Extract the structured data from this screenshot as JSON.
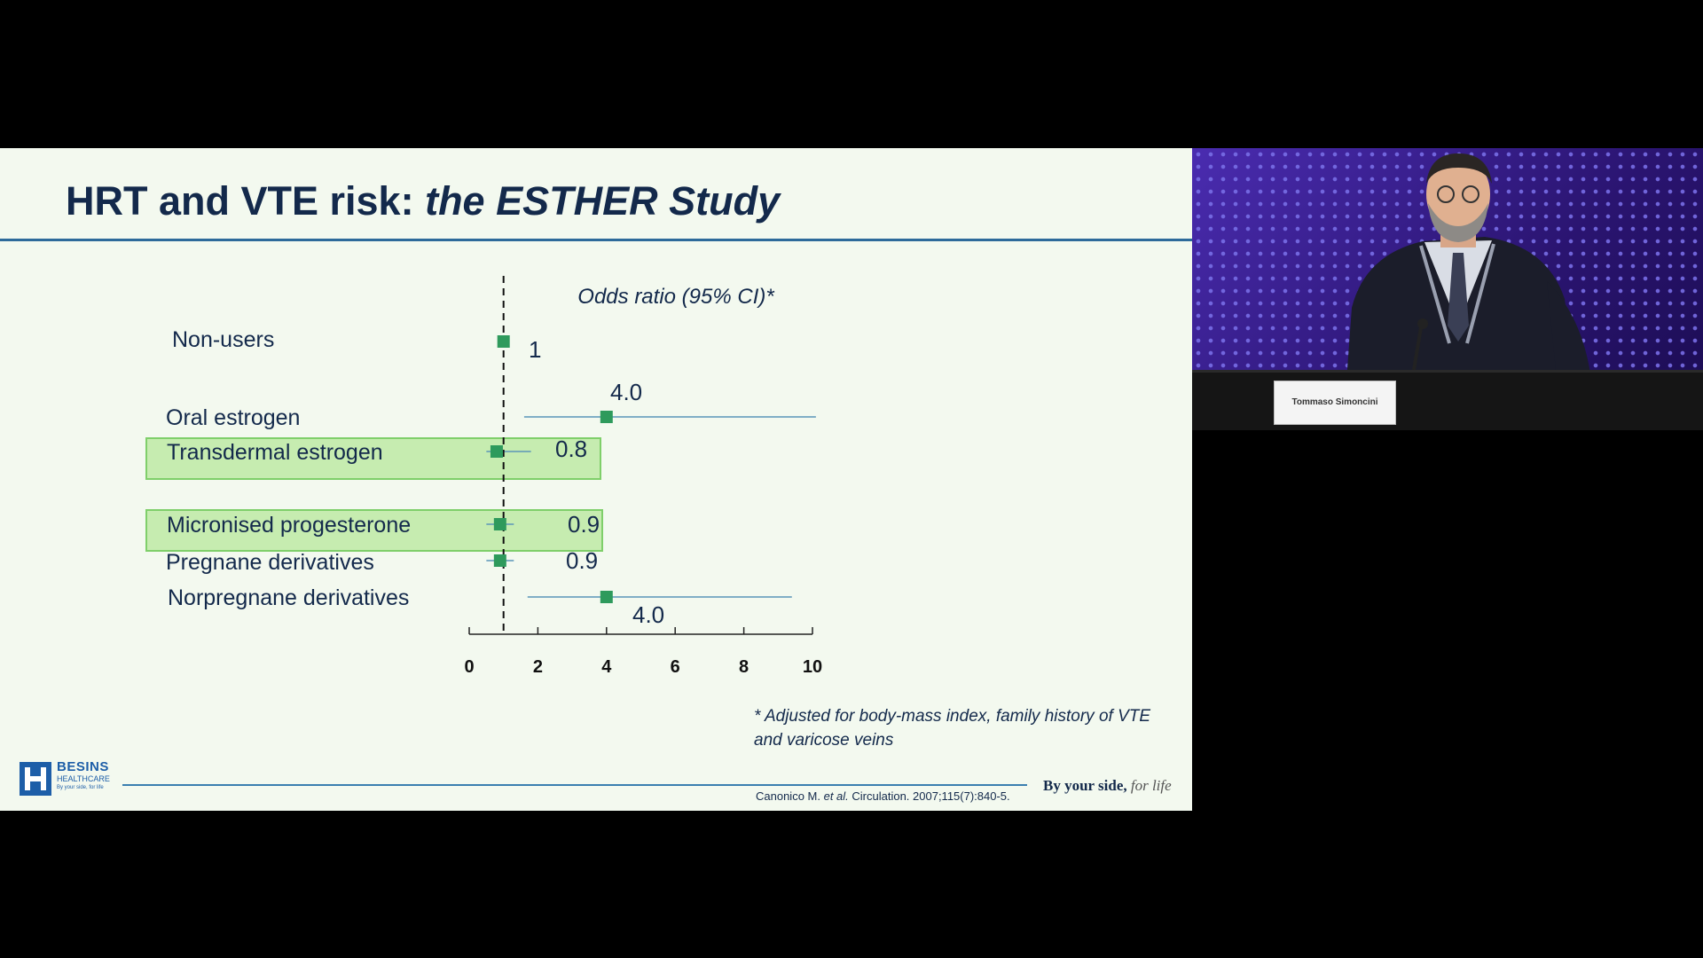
{
  "slide": {
    "title_main": "HRT and VTE risk: ",
    "title_italic": "the ESTHER Study",
    "footnote": "* Adjusted for body-mass index, family history of VTE and varicose veins",
    "citation_author": "Canonico M. ",
    "citation_etal": "et al.",
    "citation_rest": " Circulation. 2007;115(7):840-5.",
    "tagline_bold": "By your side,",
    "tagline_script": " for life",
    "logo": {
      "name": "BESINS",
      "sub": "HEALTHCARE",
      "tag": "By your side, for life"
    }
  },
  "speaker": {
    "nameplate": "Tommaso Simoncini"
  },
  "colors": {
    "navy": "#13294b",
    "marker": "#2e9a5c",
    "ci_line": "#5b95b8",
    "highlight_fill": "#c6ecb0",
    "highlight_border": "#7fcf6a"
  },
  "chart_data": {
    "type": "forest",
    "title": "Odds ratio (95% CI)*",
    "xlim": [
      0,
      10
    ],
    "xticks": [
      "0",
      "2",
      "4",
      "6",
      "8",
      "10"
    ],
    "reference_line": 1,
    "rows": [
      {
        "label": "Non-users",
        "or": 1,
        "ci": null,
        "value_label": "1",
        "highlighted": false
      },
      {
        "label": "Oral estrogen",
        "or": 4.0,
        "ci": [
          1.6,
          10.1
        ],
        "value_label": "4.0",
        "highlighted": false
      },
      {
        "label": "Transdermal estrogen",
        "or": 0.8,
        "ci": [
          0.5,
          1.8
        ],
        "value_label": "0.8",
        "highlighted": true
      },
      {
        "label": "Micronised progesterone",
        "or": 0.9,
        "ci": [
          0.5,
          1.3
        ],
        "value_label": "0.9",
        "highlighted": true
      },
      {
        "label": "Pregnane derivatives",
        "or": 0.9,
        "ci": [
          0.5,
          1.3
        ],
        "value_label": "0.9",
        "highlighted": false
      },
      {
        "label": "Norpregnane derivatives",
        "or": 4.0,
        "ci": [
          1.7,
          9.4
        ],
        "value_label": "4.0",
        "highlighted": false
      }
    ]
  }
}
